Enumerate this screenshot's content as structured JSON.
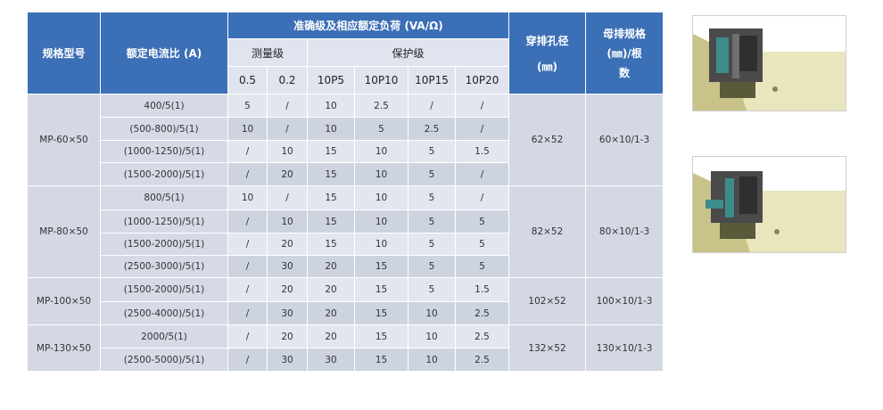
{
  "table": {
    "headers": {
      "model": "规格型号",
      "ratio": "额定电流比 (A)",
      "load": "准确级及相应额定负荷 (VA/Ω)",
      "hole": "穿排孔径",
      "hole_unit": "(㎜)",
      "busbar": "母排规格",
      "busbar_unit": "(㎜)/根",
      "busbar_unit2": "数",
      "measure": "测量级",
      "protect": "保护级",
      "classes": [
        "0.5",
        "0.2",
        "10P5",
        "10P10",
        "10P15",
        "10P20"
      ]
    },
    "groups": [
      {
        "model": "MP-60×50",
        "hole": "62×52",
        "busbar": "60×10/1-3",
        "rows": [
          [
            "400/5(1)",
            "5",
            "/",
            "10",
            "2.5",
            "/",
            "/"
          ],
          [
            "(500-800)/5(1)",
            "10",
            "/",
            "10",
            "5",
            "2.5",
            "/"
          ],
          [
            "(1000-1250)/5(1)",
            "/",
            "10",
            "15",
            "10",
            "5",
            "1.5"
          ],
          [
            "(1500-2000)/5(1)",
            "/",
            "20",
            "15",
            "10",
            "5",
            "/"
          ]
        ]
      },
      {
        "model": "MP-80×50",
        "hole": "82×52",
        "busbar": "80×10/1-3",
        "rows": [
          [
            "800/5(1)",
            "10",
            "/",
            "15",
            "10",
            "5",
            "/"
          ],
          [
            "(1000-1250)/5(1)",
            "/",
            "10",
            "15",
            "10",
            "5",
            "5"
          ],
          [
            "(1500-2000)/5(1)",
            "/",
            "20",
            "15",
            "10",
            "5",
            "5"
          ],
          [
            "(2500-3000)/5(1)",
            "/",
            "30",
            "20",
            "15",
            "5",
            "5"
          ]
        ]
      },
      {
        "model": "MP-100×50",
        "hole": "102×52",
        "busbar": "100×10/1-3",
        "rows": [
          [
            "(1500-2000)/5(1)",
            "/",
            "20",
            "20",
            "15",
            "5",
            "1.5"
          ],
          [
            "(2500-4000)/5(1)",
            "/",
            "30",
            "20",
            "15",
            "10",
            "2.5"
          ]
        ]
      },
      {
        "model": "MP-130×50",
        "hole": "132×52",
        "busbar": "130×10/1-3",
        "rows": [
          [
            "2000/5(1)",
            "/",
            "20",
            "20",
            "15",
            "10",
            "2.5"
          ],
          [
            "(2500-5000)/5(1)",
            "/",
            "30",
            "30",
            "15",
            "10",
            "2.5"
          ]
        ]
      }
    ]
  },
  "images": [
    {
      "icon": "busbar-mount-photo-1"
    },
    {
      "icon": "busbar-mount-photo-2"
    }
  ]
}
